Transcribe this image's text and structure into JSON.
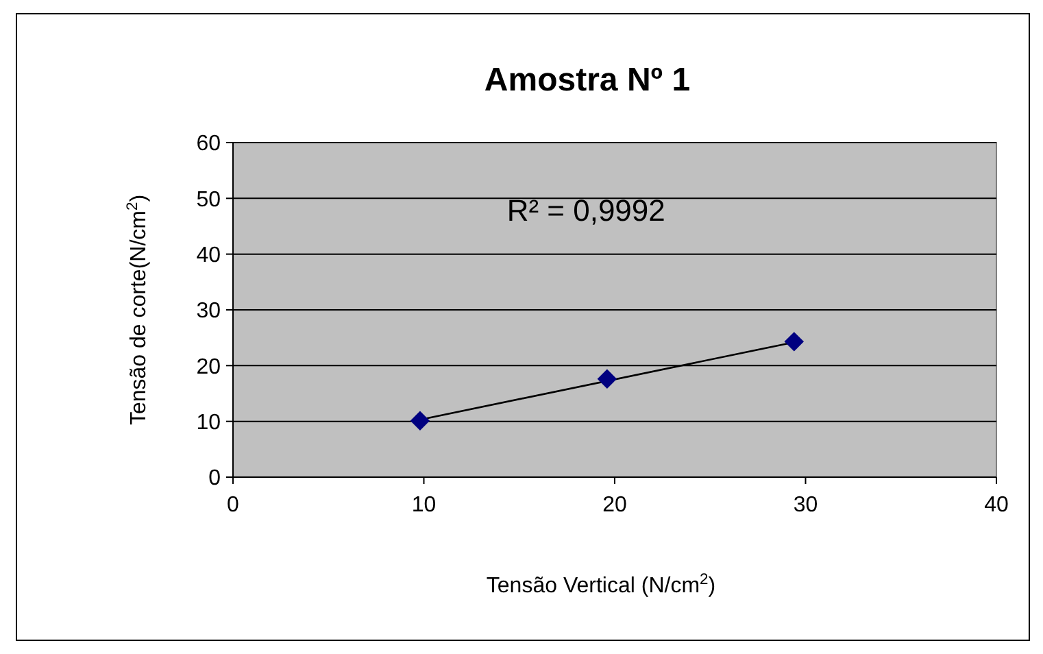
{
  "chart_data": {
    "type": "scatter",
    "title": "Amostra Nº 1",
    "xlabel": "Tensão Vertical (N/cm$^{2}$)",
    "ylabel": "Tensão de corte(N/cm$^{2}$)",
    "annotations": [
      "R² = 0,9992"
    ],
    "xlim": [
      0,
      40
    ],
    "xticks": [
      0,
      10,
      20,
      30,
      40
    ],
    "ylim": [
      0,
      60
    ],
    "yticks": [
      0,
      10,
      20,
      30,
      40,
      50,
      60
    ],
    "grid": "y",
    "series": [
      {
        "type": "line",
        "color": "#000000",
        "x": [
          9.8,
          29.4
        ],
        "values": [
          10.3,
          24.2
        ],
        "marker": "none",
        "line_style": "solid"
      },
      {
        "color": "#000080",
        "x": [
          9.8,
          19.6,
          29.4
        ],
        "values": [
          10.1,
          17.6,
          24.3
        ],
        "marker": "diamond"
      }
    ]
  }
}
